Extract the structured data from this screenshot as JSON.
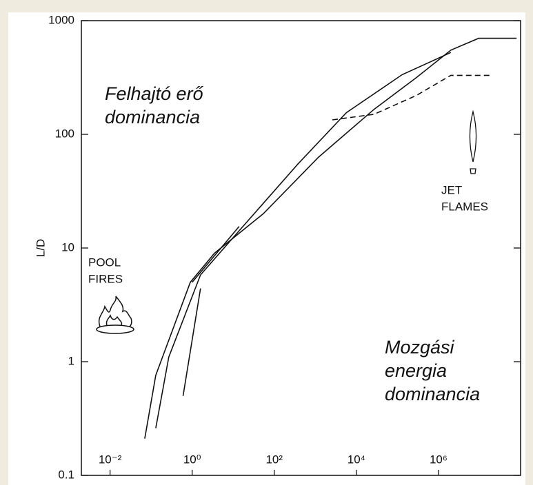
{
  "chart_data": {
    "type": "line",
    "y_label": "L/D",
    "xscale": "log",
    "yscale": "log",
    "xlim": [
      0.002,
      100000000
    ],
    "ylim": [
      0.1,
      1000
    ],
    "xticks": [
      {
        "value": 0.01,
        "label": "10⁻²"
      },
      {
        "value": 1,
        "label": "10⁰"
      },
      {
        "value": 100,
        "label": "10²"
      },
      {
        "value": 10000,
        "label": "10⁴"
      },
      {
        "value": 1000000,
        "label": "10⁶"
      }
    ],
    "yticks": [
      0.1,
      1,
      10,
      100,
      1000
    ],
    "annotations": [
      [
        "Felhajtó erő",
        "dominancia"
      ],
      [
        "Mozgási",
        "energia",
        "dominancia"
      ],
      [
        "POOL",
        "FIRES"
      ],
      [
        "JET",
        "FLAMES"
      ]
    ],
    "series": [
      {
        "color": "#111111",
        "style": "solid",
        "x": [
          0.07,
          0.13,
          0.9,
          3.5,
          54,
          1200,
          27000,
          290000,
          2000000,
          9500000,
          80000000
        ],
        "values": [
          0.21,
          0.76,
          5,
          9,
          20,
          63,
          166,
          316,
          550,
          700,
          700
        ]
      },
      {
        "color": "#111111",
        "style": "solid",
        "x": [
          0.13,
          0.27,
          1.6,
          16,
          380,
          5700,
          130000,
          2000000
        ],
        "values": [
          0.26,
          1.1,
          5.8,
          15,
          55,
          155,
          335,
          525
        ]
      },
      {
        "color": "#111111",
        "style": "dashed",
        "x": [
          2600,
          27000,
          290000,
          2000000,
          21000000
        ],
        "values": [
          134,
          150,
          220,
          330,
          330
        ]
      },
      {
        "color": "#111111",
        "style": "solid",
        "x": [
          0.6,
          1.6
        ],
        "values": [
          0.5,
          4.4
        ]
      },
      {
        "color": "#111111",
        "style": "solid",
        "x": [
          1,
          14
        ],
        "values": [
          5,
          15.5
        ]
      }
    ]
  }
}
